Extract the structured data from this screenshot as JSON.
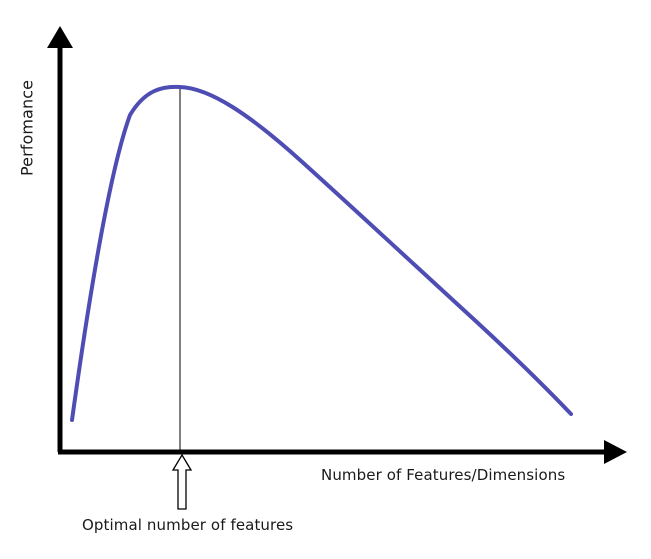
{
  "diagram": {
    "y_axis_label": "Perfomance",
    "x_axis_label": "Number of Features/Dimensions",
    "optimal_label": "Optimal number of features",
    "colors": {
      "curve": "#4d4db3",
      "axes": "#000000",
      "background": "#ffffff"
    },
    "curve_description": "performance rises steeply, peaks at the optimal number of features, then declines gradually"
  }
}
